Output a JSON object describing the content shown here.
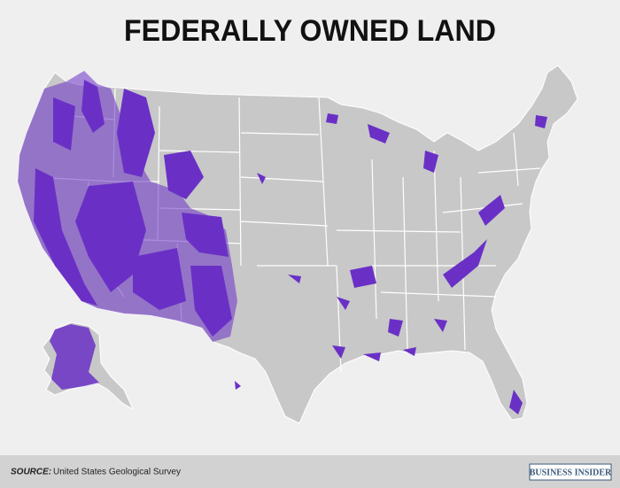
{
  "title": "FEDERALLY OWNED LAND",
  "footer": {
    "source_label": "SOURCE:",
    "source": "United States Geological Survey",
    "brand": "BUSINESS INSIDER"
  }
}
